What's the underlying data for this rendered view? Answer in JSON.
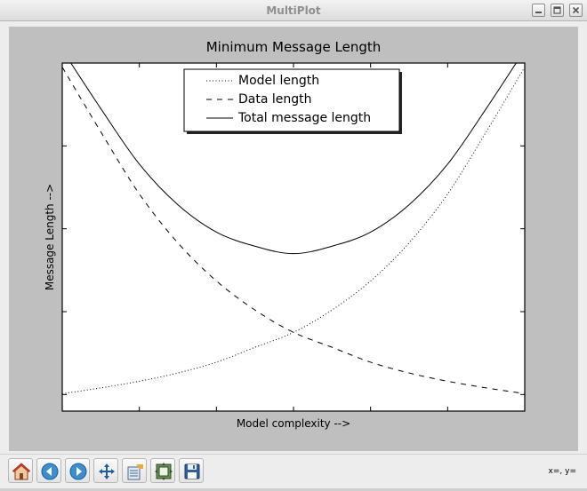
{
  "window": {
    "title": "MultiPlot"
  },
  "toolbar": {
    "buttons": [
      {
        "name": "home",
        "icon": "home-icon"
      },
      {
        "name": "back",
        "icon": "back-arrow-icon"
      },
      {
        "name": "forward",
        "icon": "forward-arrow-icon"
      },
      {
        "name": "pan",
        "icon": "pan-arrows-icon"
      },
      {
        "name": "zoom",
        "icon": "zoom-rect-icon"
      },
      {
        "name": "subplots",
        "icon": "subplots-icon"
      },
      {
        "name": "save",
        "icon": "floppy-disk-icon"
      }
    ],
    "coords_text": "x=, y="
  },
  "colors": {
    "panel": "#bfbfbf",
    "axes_bg": "#ffffff",
    "line": "#000000"
  },
  "chart_data": {
    "type": "line",
    "title": "Minimum Message Length",
    "xlabel": "Model complexity -->",
    "ylabel": "Message Length -->",
    "xlim": [
      0,
      6
    ],
    "ylim": [
      0,
      4.2
    ],
    "x_ticks": [
      1,
      2,
      3,
      4,
      5
    ],
    "y_ticks": [
      0.2,
      1.2,
      2.2,
      3.2
    ],
    "tick_labels_visible": false,
    "legend_position": "top-center",
    "series": [
      {
        "name": "Model length",
        "style": "dotted",
        "x": [
          0,
          0.5,
          1,
          1.5,
          2,
          2.5,
          3,
          3.5,
          4,
          4.5,
          5,
          5.5,
          6
        ],
        "y": [
          0.21,
          0.28,
          0.36,
          0.46,
          0.59,
          0.77,
          0.95,
          1.22,
          1.57,
          2.03,
          2.62,
          3.37,
          4.15
        ]
      },
      {
        "name": "Data length",
        "style": "dashed",
        "x": [
          0,
          0.5,
          1,
          1.5,
          2,
          2.5,
          3,
          3.5,
          4,
          4.5,
          5,
          5.5,
          6
        ],
        "y": [
          4.15,
          3.37,
          2.62,
          2.03,
          1.57,
          1.22,
          0.95,
          0.77,
          0.59,
          0.46,
          0.36,
          0.28,
          0.21
        ]
      },
      {
        "name": "Total message length",
        "style": "solid",
        "x": [
          0,
          0.5,
          1,
          1.5,
          2,
          2.5,
          3,
          3.5,
          4,
          4.5,
          5,
          5.5,
          6
        ],
        "y": [
          4.36,
          3.65,
          2.98,
          2.49,
          2.16,
          1.99,
          1.9,
          1.99,
          2.16,
          2.49,
          2.98,
          3.65,
          4.36
        ]
      }
    ]
  }
}
